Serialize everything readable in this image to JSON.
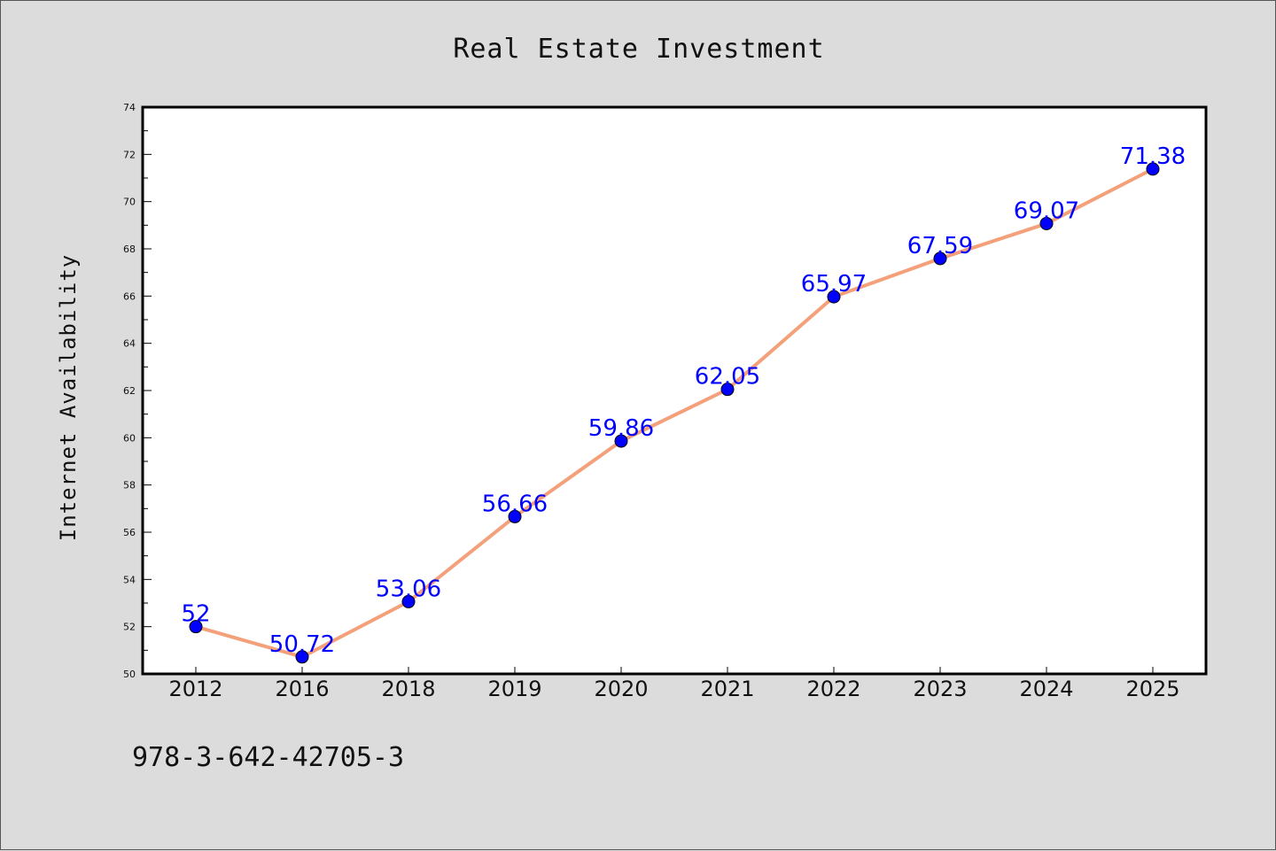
{
  "chart_data": {
    "type": "line",
    "title": "Real Estate Investment",
    "xlabel": "",
    "ylabel": "Internet Availability",
    "categories": [
      "2012",
      "2016",
      "2018",
      "2019",
      "2020",
      "2021",
      "2022",
      "2023",
      "2024",
      "2025"
    ],
    "values": [
      52,
      50.72,
      53.06,
      56.66,
      59.86,
      62.05,
      65.97,
      67.59,
      69.07,
      71.38
    ],
    "data_labels": [
      "52",
      "50.72",
      "53.06",
      "56.66",
      "59.86",
      "62.05",
      "65.97",
      "67.59",
      "69.07",
      "71.38"
    ],
    "ylim": [
      50,
      74
    ],
    "yticks": [
      50,
      52,
      54,
      56,
      58,
      60,
      62,
      64,
      66,
      68,
      70,
      72,
      74
    ],
    "grid": false,
    "legend": "none",
    "line_color": "#f4a07a",
    "marker_color": "#0000ff",
    "label_color": "#0000ff"
  },
  "footer": {
    "isbn": "978-3-642-42705-3"
  }
}
